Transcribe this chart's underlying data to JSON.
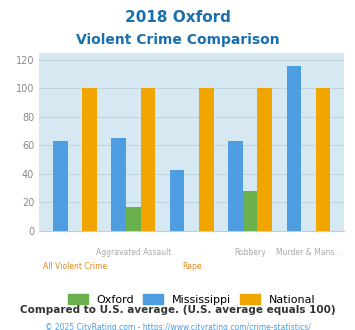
{
  "title_line1": "2018 Oxford",
  "title_line2": "Violent Crime Comparison",
  "categories": [
    "All Violent Crime",
    "Aggravated Assault",
    "Rape",
    "Robbery",
    "Murder & Mans..."
  ],
  "categories_top": [
    "",
    "Aggravated Assault",
    "",
    "Robbery",
    "Murder & Mans..."
  ],
  "categories_bot": [
    "All Violent Crime",
    "",
    "Rape",
    "",
    ""
  ],
  "oxford": [
    0,
    17,
    0,
    28,
    0
  ],
  "mississippi": [
    63,
    65,
    43,
    63,
    116
  ],
  "national": [
    100,
    100,
    100,
    100,
    100
  ],
  "oxford_color": "#6ab04c",
  "mississippi_color": "#4d9de0",
  "national_color": "#f0a500",
  "ylim": [
    0,
    125
  ],
  "yticks": [
    0,
    20,
    40,
    60,
    80,
    100,
    120
  ],
  "bg_color": "#d6e9f3",
  "title_color": "#1a6fad",
  "footer_text": "Compared to U.S. average. (U.S. average equals 100)",
  "credit_text": "© 2025 CityRating.com - https://www.cityrating.com/crime-statistics/",
  "legend_labels": [
    "Oxford",
    "Mississippi",
    "National"
  ],
  "bar_width": 0.25,
  "xtick_top_color": "#aaaaaa",
  "xtick_bot_color": "#e08820",
  "grid_color": "#b8cfd8",
  "ytick_color": "#888888"
}
